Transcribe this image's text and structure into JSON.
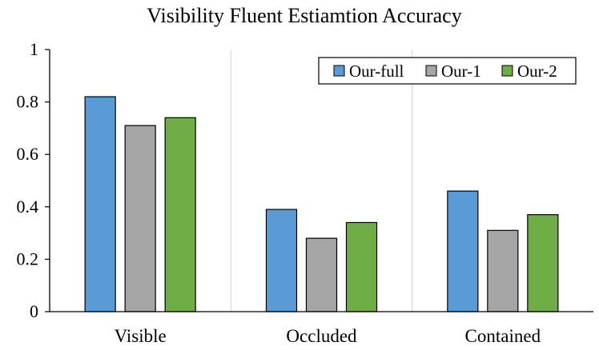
{
  "chart_data": {
    "type": "bar",
    "title": "Visibility  Fluent Estiamtion Accuracy",
    "xlabel": "",
    "ylabel": "",
    "categories": [
      "Visible",
      "Occluded",
      "Contained"
    ],
    "series": [
      {
        "name": "Our-full",
        "color": "#5b9bd5",
        "values": [
          0.82,
          0.39,
          0.46
        ]
      },
      {
        "name": "Our-1",
        "color": "#a5a5a5",
        "values": [
          0.71,
          0.28,
          0.31
        ]
      },
      {
        "name": "Our-2",
        "color": "#70ad47",
        "values": [
          0.74,
          0.34,
          0.37
        ]
      }
    ],
    "ylim": [
      0,
      1
    ],
    "yticks": [
      0,
      0.2,
      0.4,
      0.6,
      0.8,
      1
    ],
    "ytick_labels": [
      "0",
      "0.2",
      "0.4",
      "0.6",
      "0.8",
      "1"
    ],
    "grid": "vertical-category-separators",
    "legend_position": "top-right"
  }
}
